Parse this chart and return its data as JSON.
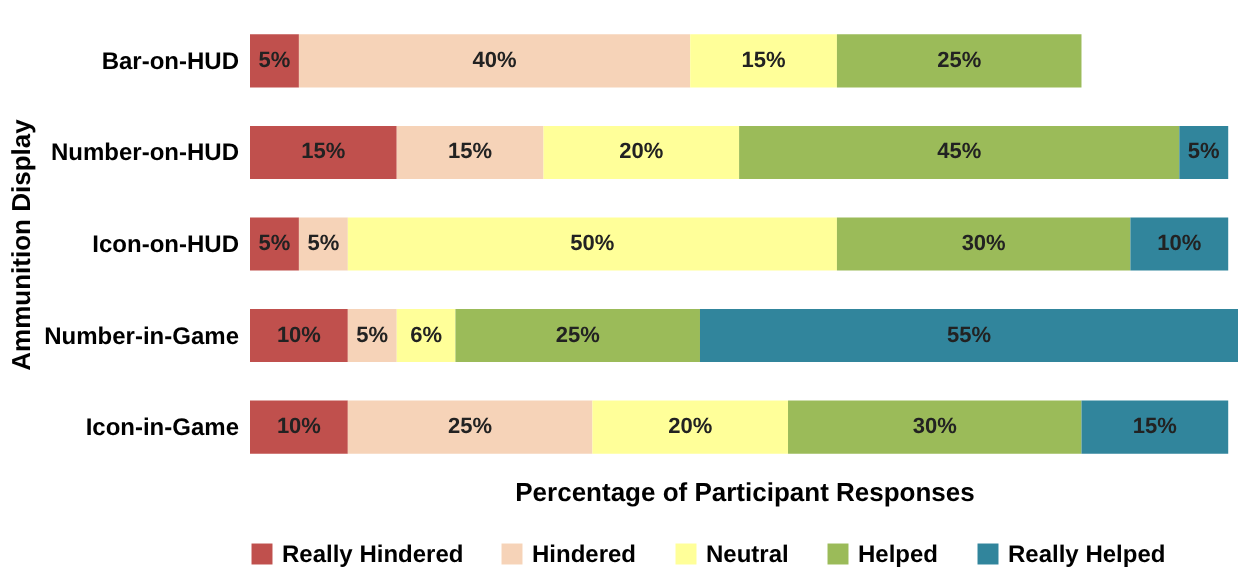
{
  "chart_data": {
    "type": "bar",
    "orientation": "horizontal",
    "stacked": true,
    "xlabel": "Percentage of Participant Responses",
    "ylabel": "Ammunition Display",
    "categories": [
      "Bar-on-HUD",
      "Number-on-HUD",
      "Icon-on-HUD",
      "Number-in-Game",
      "Icon-in-Game"
    ],
    "series": [
      {
        "name": "Really Hindered",
        "color": "#c0504d",
        "values": [
          5,
          15,
          5,
          10,
          10
        ],
        "value_labels": [
          "5%",
          "15%",
          "5%",
          "10%",
          "10%"
        ]
      },
      {
        "name": "Hindered",
        "color": "#f6d3b8",
        "values": [
          40,
          15,
          5,
          5,
          25
        ],
        "value_labels": [
          "40%",
          "15%",
          "5%",
          "5%",
          "25%"
        ]
      },
      {
        "name": "Neutral",
        "color": "#ffff99",
        "values": [
          15,
          20,
          50,
          6,
          20
        ],
        "value_labels": [
          "15%",
          "20%",
          "50%",
          "6%",
          "20%"
        ]
      },
      {
        "name": "Helped",
        "color": "#9bbb59",
        "values": [
          25,
          45,
          30,
          25,
          30
        ],
        "value_labels": [
          "25%",
          "45%",
          "30%",
          "25%",
          "30%"
        ]
      },
      {
        "name": "Really Helped",
        "color": "#31859c",
        "values": [
          null,
          5,
          10,
          55,
          15
        ],
        "value_labels": [
          null,
          "5%",
          "10%",
          "55%",
          "15%"
        ]
      }
    ],
    "legend": "bottom"
  }
}
